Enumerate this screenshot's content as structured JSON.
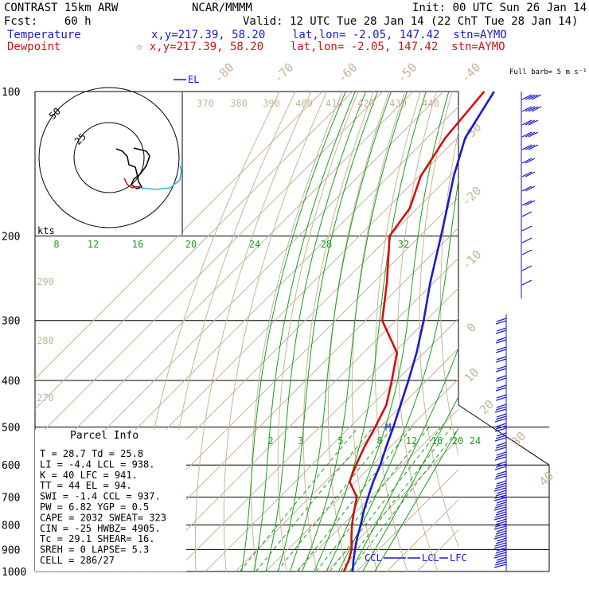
{
  "header": {
    "model": "CONTRAST 15km ARW",
    "center": "NCAR/MMMM",
    "init": "Init: 00 UTC Sun 26 Jan 14",
    "fcst": "Fcst:    60 h",
    "valid": "Valid: 12 UTC Tue 28 Jan 14 (22 ChT Tue 28 Jan 14)",
    "temp_label": "Temperature",
    "temp_info": "x,y=217.39, 58.20    lat,lon= -2.05, 147.42  stn=AYMO",
    "dew_label": "Dewpoint",
    "dew_info": "☆ x,y=217.39, 58.20    lat,lon= -2.05, 147.42  stn=AYMO"
  },
  "chart_data": {
    "type": "line",
    "subtype": "skew-T log-p sounding",
    "pressure_ticks": [
      "100",
      "200",
      "300",
      "400",
      "500",
      "600",
      "700",
      "800",
      "900",
      "1000"
    ],
    "isotherm_labels": [
      "-80",
      "-70",
      "-60",
      "-50",
      "-40",
      "-30",
      "-20",
      "-10",
      "0",
      "10",
      "20",
      "30",
      "40"
    ],
    "theta_labels": [
      "370",
      "380",
      "390",
      "400",
      "410",
      "420",
      "430",
      "440",
      "290",
      "280",
      "270"
    ],
    "mixing_ratio_labels": [
      "2",
      "3",
      "5",
      "8",
      "12",
      "16",
      "20",
      "24"
    ],
    "theta_e_labels": [
      "8",
      "12",
      "16",
      "20",
      "24",
      "28",
      "32"
    ],
    "series": [
      {
        "name": "Temperature",
        "color": "#1a1acc",
        "points": [
          [
            1000,
            28.7
          ],
          [
            950,
            25.4
          ],
          [
            900,
            22.2
          ],
          [
            850,
            19.0
          ],
          [
            800,
            16.0
          ],
          [
            750,
            12.5
          ],
          [
            700,
            9.2
          ],
          [
            650,
            5.8
          ],
          [
            600,
            2.6
          ],
          [
            550,
            -1.4
          ],
          [
            500,
            -5.6
          ],
          [
            450,
            -10.5
          ],
          [
            400,
            -16.0
          ],
          [
            350,
            -22.5
          ],
          [
            300,
            -30.8
          ],
          [
            250,
            -41.2
          ],
          [
            200,
            -53.0
          ],
          [
            175,
            -60.2
          ],
          [
            150,
            -68.6
          ],
          [
            125,
            -77.4
          ],
          [
            100,
            -83.2
          ]
        ]
      },
      {
        "name": "Dewpoint",
        "color": "#d01010",
        "points": [
          [
            1000,
            25.8
          ],
          [
            950,
            23.8
          ],
          [
            900,
            21.1
          ],
          [
            850,
            17.1
          ],
          [
            800,
            13.1
          ],
          [
            750,
            9.3
          ],
          [
            700,
            5.5
          ],
          [
            650,
            -2.0
          ],
          [
            600,
            -5.4
          ],
          [
            550,
            -8.6
          ],
          [
            500,
            -11.6
          ],
          [
            450,
            -15.2
          ],
          [
            400,
            -21.5
          ],
          [
            350,
            -29.0
          ],
          [
            300,
            -44.5
          ],
          [
            250,
            -55.5
          ],
          [
            200,
            -70.0
          ],
          [
            175,
            -72.5
          ],
          [
            150,
            -79.5
          ],
          [
            125,
            -84.0
          ],
          [
            100,
            -86.5
          ]
        ]
      }
    ],
    "level_labels": [
      "EL",
      "M",
      "CCL",
      "LCL",
      "LFC"
    ],
    "hodograph": {
      "ring_labels": [
        "50",
        "25"
      ],
      "units": "kts"
    },
    "wind_barbs": {
      "label": "Full barb= 5 m s⁻¹"
    }
  },
  "parcel_info": {
    "title": "Parcel Info",
    "rows": [
      "T  =   28.7 Td =  25.8",
      "LI =   -4.4 LCL =  938.",
      "K  =     40 LFC =  941.",
      "TT =     44 EL  =   94.",
      "SWI =  -1.4 CCL =  937.",
      "PW =   6.82 YGP =   0.5",
      "CAPE =  2032 SWEAT=  323",
      "CIN =   -25 HWBZ= 4905.",
      "Tc =   29.1 SHEAR=  16.",
      "SREH =     0 LAPSE=  5.3",
      "CELL = 286/27"
    ]
  }
}
